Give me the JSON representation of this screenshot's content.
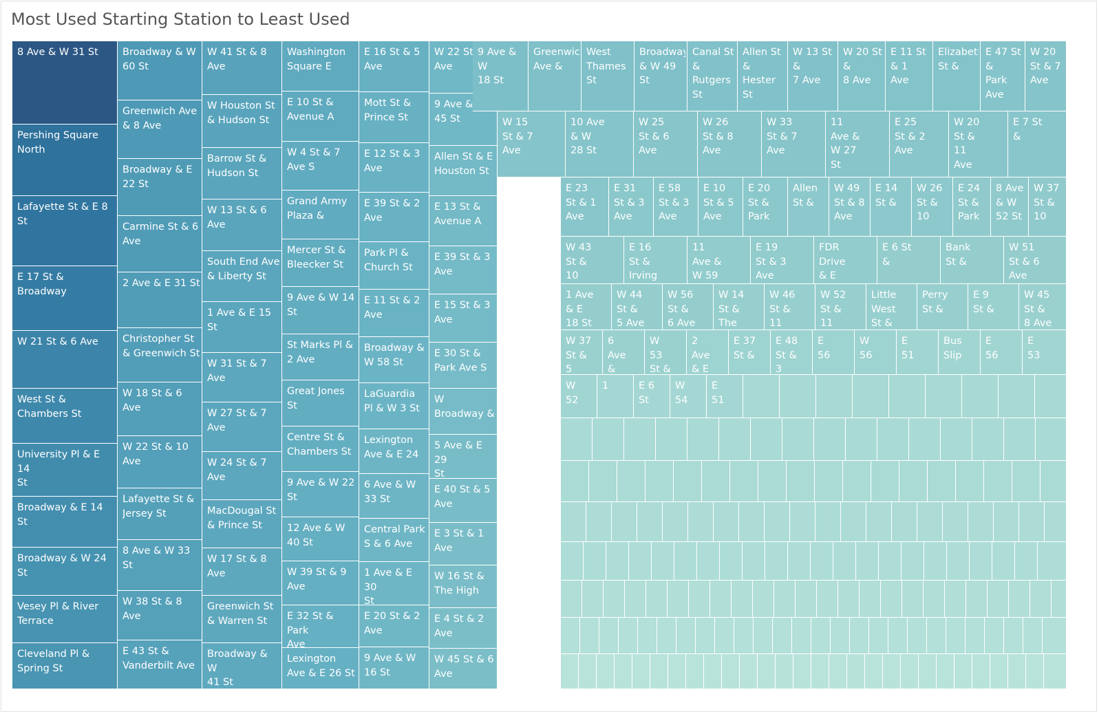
{
  "chart": {
    "title": "Most Used Starting Station to Least Used"
  },
  "colors": {
    "darkest": "#2c5784",
    "lightest": "#b8e3da"
  },
  "chart_data": {
    "type": "treemap",
    "title": "Most Used Starting Station to Least Used",
    "measure": "trip count (relative rank, estimated; not printed)",
    "leaves": [
      {
        "name": "8 Ave & W 31 St",
        "label": "8 Ave & W 31 St",
        "value": 122
      },
      {
        "name": "Pershing Square North",
        "label": "Pershing Square\nNorth",
        "value": 105
      },
      {
        "name": "Lafayette St & E 8 St",
        "label": "Lafayette St & E 8\nSt",
        "value": 103
      },
      {
        "name": "E 17 St & Broadway",
        "label": "E 17 St & Broadway",
        "value": 95
      },
      {
        "name": "W 21 St & 6 Ave",
        "label": "W 21 St & 6 Ave",
        "value": 85
      },
      {
        "name": "West St & Chambers St",
        "label": "West St &\nChambers St",
        "value": 81
      },
      {
        "name": "University Pl & E 14 St",
        "label": "University Pl & E 14\nSt",
        "value": 77
      },
      {
        "name": "Broadway & E 14 St",
        "label": "Broadway & E 14 St",
        "value": 74
      },
      {
        "name": "Broadway & W 24 St",
        "label": "Broadway & W 24\nSt",
        "value": 70
      },
      {
        "name": "Vesey Pl & River Terrace",
        "label": "Vesey Pl & River\nTerrace",
        "value": 69
      },
      {
        "name": "Cleveland Pl & Spring St",
        "label": "Cleveland Pl &\nSpring St",
        "value": 67
      },
      {
        "name": "Broadway & W 60 St",
        "label": "Broadway & W\n60 St",
        "value": 61
      },
      {
        "name": "Greenwich Ave & 8 Ave",
        "label": "Greenwich Ave\n& 8 Ave",
        "value": 60
      },
      {
        "name": "Broadway & E 22 St",
        "label": "Broadway & E\n22 St",
        "value": 59
      },
      {
        "name": "Carmine St & 6 Ave",
        "label": "Carmine St & 6\nAve",
        "value": 58
      },
      {
        "name": "2 Ave & E 31 St",
        "label": "2 Ave & E 31 St",
        "value": 57
      },
      {
        "name": "Christopher St & Greenwich St",
        "label": "Christopher St\n& Greenwich St",
        "value": 56
      },
      {
        "name": "W 18 St & 6 Ave",
        "label": "W 18 St & 6\nAve",
        "value": 55
      },
      {
        "name": "W 22 St & 10 Ave",
        "label": "W 22 St & 10\nAve",
        "value": 54
      },
      {
        "name": "Lafayette St & Jersey St",
        "label": "Lafayette St &\nJersey St",
        "value": 53
      },
      {
        "name": "8 Ave & W 33 St",
        "label": "8 Ave & W 33\nSt",
        "value": 52
      },
      {
        "name": "W 38 St & 8 Ave",
        "label": "W 38 St & 8\nAve",
        "value": 51
      },
      {
        "name": "E 43 St & Vanderbilt Ave",
        "label": "E 43 St &\nVanderbilt Ave",
        "value": 50
      },
      {
        "name": "W 41 St & 8 Ave",
        "label": "W 41 St & 8\nAve",
        "value": 49
      },
      {
        "name": "W Houston St & Hudson St",
        "label": "W Houston St\n& Hudson St",
        "value": 48
      },
      {
        "name": "Barrow St & Hudson St",
        "label": "Barrow St &\nHudson St",
        "value": 47
      },
      {
        "name": "W 13 St & 6 Ave",
        "label": "W 13 St & 6\nAve",
        "value": 47
      },
      {
        "name": "South End Ave & Liberty St",
        "label": "South End Ave\n& Liberty St",
        "value": 46
      },
      {
        "name": "1 Ave & E 15 St",
        "label": "1 Ave & E 15\nSt",
        "value": 46
      },
      {
        "name": "W 31 St & 7 Ave",
        "label": "W 31 St & 7\nAve",
        "value": 45
      },
      {
        "name": "W 27 St & 7 Ave",
        "label": "W 27 St & 7\nAve",
        "value": 45
      },
      {
        "name": "W 24 St & 7 Ave",
        "label": "W 24 St & 7\nAve",
        "value": 44
      },
      {
        "name": "MacDougal St & Prince St",
        "label": "MacDougal St\n& Prince St",
        "value": 44
      },
      {
        "name": "W 17 St & 8 Ave",
        "label": "W 17 St & 8\nAve",
        "value": 43
      },
      {
        "name": "Greenwich St & Warren St",
        "label": "Greenwich St\n& Warren St",
        "value": 43
      },
      {
        "name": "Broadway & W 41 St",
        "label": "Broadway & W\n41 St",
        "value": 42
      },
      {
        "name": "Washington Square E",
        "label": "Washington\nSquare E",
        "value": 41
      },
      {
        "name": "E 10 St & Avenue A",
        "label": "E 10 St &\nAvenue A",
        "value": 41
      },
      {
        "name": "W 4 St & 7 Ave S",
        "label": "W 4 St & 7\nAve S",
        "value": 40
      },
      {
        "name": "Grand Army Plaza &",
        "label": "Grand Army\nPlaza &",
        "value": 40
      },
      {
        "name": "Mercer St & Bleecker St",
        "label": "Mercer St &\nBleecker St",
        "value": 39
      },
      {
        "name": "9 Ave & W 14 St",
        "label": "9 Ave & W 14\nSt",
        "value": 39
      },
      {
        "name": "St Marks Pl & 2 Ave",
        "label": "St Marks Pl &\n2 Ave",
        "value": 38
      },
      {
        "name": "Great Jones St",
        "label": "Great Jones\nSt",
        "value": 38
      },
      {
        "name": "Centre St & Chambers St",
        "label": "Centre St &\nChambers St",
        "value": 37
      },
      {
        "name": "9 Ave & W 22 St",
        "label": "9 Ave & W 22\nSt",
        "value": 37
      },
      {
        "name": "12 Ave & W 40 St",
        "label": "12 Ave & W\n40 St",
        "value": 36
      },
      {
        "name": "W 39 St & 9 Ave",
        "label": "W 39 St & 9\nAve",
        "value": 36
      },
      {
        "name": "E 32 St & Park Ave",
        "label": "E 32 St & Park\nAve",
        "value": 35
      },
      {
        "name": "Lexington Ave & E 26 St",
        "label": "Lexington\nAve & E 26 St",
        "value": 35
      },
      {
        "name": "E 16 St & 5 Ave",
        "label": "E 16 St & 5\nAve",
        "value": 34
      },
      {
        "name": "Mott St & Prince St",
        "label": "Mott St &\nPrince St",
        "value": 34
      },
      {
        "name": "E 12 St & 3 Ave",
        "label": "E 12 St & 3\nAve",
        "value": 33
      },
      {
        "name": "E 39 St & 2 Ave",
        "label": "E 39 St & 2\nAve",
        "value": 33
      },
      {
        "name": "Park Pl & Church St",
        "label": "Park Pl &\nChurch St",
        "value": 32
      },
      {
        "name": "E 11 St & 2 Ave",
        "label": "E 11 St & 2\nAve",
        "value": 32
      },
      {
        "name": "Broadway & W 58 St",
        "label": "Broadway &\nW 58 St",
        "value": 31
      },
      {
        "name": "LaGuardia Pl & W 3 St",
        "label": "LaGuardia\nPl & W 3 St",
        "value": 31
      },
      {
        "name": "Lexington Ave & E 24",
        "label": "Lexington\nAve & E 24",
        "value": 30
      },
      {
        "name": "6 Ave & W 33 St",
        "label": "6 Ave & W\n33 St",
        "value": 30
      },
      {
        "name": "Central Park S & 6 Ave",
        "label": "Central Park\nS & 6 Ave",
        "value": 29
      },
      {
        "name": "1 Ave & E 30 St",
        "label": "1 Ave & E 30\nSt",
        "value": 29
      },
      {
        "name": "E 20 St & 2 Ave",
        "label": "E 20 St & 2\nAve",
        "value": 28
      },
      {
        "name": "9 Ave & W 16 St",
        "label": "9 Ave & W\n16 St",
        "value": 28
      },
      {
        "name": "W 22 St & 8 Ave",
        "label": "W 22 St & 8\nAve",
        "value": 27
      },
      {
        "name": "9 Ave & W 45 St",
        "label": "9 Ave & W\n45 St",
        "value": 27
      },
      {
        "name": "Allen St & E Houston St",
        "label": "Allen St & E\nHouston St",
        "value": 26
      },
      {
        "name": "E 13 St & Avenue A",
        "label": "E 13 St &\nAvenue A",
        "value": 26
      },
      {
        "name": "E 39 St & 3 Ave",
        "label": "E 39 St & 3\nAve",
        "value": 25
      },
      {
        "name": "E 15 St & 3 Ave",
        "label": "E 15 St & 3\nAve",
        "value": 25
      },
      {
        "name": "E 30 St & Park Ave S",
        "label": "E 30 St &\nPark Ave S",
        "value": 24
      },
      {
        "name": "W Broadway &",
        "label": "W\nBroadway &",
        "value": 24
      },
      {
        "name": "5 Ave & E 29 St",
        "label": "5 Ave & E 29\nSt",
        "value": 23
      },
      {
        "name": "E 40 St & 5 Ave",
        "label": "E 40 St & 5\nAve",
        "value": 23
      },
      {
        "name": "E 3 St & 1 Ave",
        "label": "E 3 St & 1\nAve",
        "value": 22
      },
      {
        "name": "W 16 St & The High",
        "label": "W 16 St &\nThe High",
        "value": 22
      },
      {
        "name": "E 4 St & 2 Ave",
        "label": "E 4 St & 2\nAve",
        "value": 21
      },
      {
        "name": "W 45 St & 6 Ave",
        "label": "W 45 St & 6\nAve",
        "value": 21
      },
      {
        "name": "9 Ave & W 18 St",
        "label": "9 Ave & W\n18 St",
        "value": 20
      },
      {
        "name": "Greenwich Ave &",
        "label": "Greenwich\nAve &",
        "value": 19
      },
      {
        "name": "West Thames St",
        "label": "West\nThames St",
        "value": 19
      },
      {
        "name": "Broadway & W 49 St",
        "label": "Broadway\n& W 49 St",
        "value": 19
      },
      {
        "name": "Canal St & Rutgers St",
        "label": "Canal St &\nRutgers St",
        "value": 18
      },
      {
        "name": "Allen St & Hester St",
        "label": "Allen St &\nHester St",
        "value": 18
      },
      {
        "name": "W 13 St & 7 Ave",
        "label": "W 13 St &\n7 Ave",
        "value": 18
      },
      {
        "name": "W 20 St & 8 Ave",
        "label": "W 20 St &\n8 Ave",
        "value": 17
      },
      {
        "name": "E 11 St & 1 Ave",
        "label": "E 11 St & 1\nAve",
        "value": 17
      },
      {
        "name": "Elizabeth St &",
        "label": "Elizabeth\nSt &",
        "value": 17
      },
      {
        "name": "E 47 St & Park Ave",
        "label": "E 47 St &\nPark Ave",
        "value": 16
      },
      {
        "name": "W 20 St & 7 Ave",
        "label": "W 20\nSt & 7\nAve",
        "value": 16
      },
      {
        "name": "W 15 St & 7 Ave",
        "label": "W 15\nSt & 7\nAve",
        "value": 16
      },
      {
        "name": "10 Ave & W 28 St",
        "label": "10 Ave\n& W\n28 St",
        "value": 16
      },
      {
        "name": "W 25 St & 6 Ave",
        "label": "W 25\nSt & 6\nAve",
        "value": 15
      },
      {
        "name": "W 26 St & 8 Ave",
        "label": "W 26\nSt & 8\nAve",
        "value": 15
      },
      {
        "name": "W 33 St & 7 Ave",
        "label": "W 33\nSt & 7\nAve",
        "value": 15
      },
      {
        "name": "11 Ave & W 27 St",
        "label": "11\nAve &\nW 27\nSt",
        "value": 15
      },
      {
        "name": "E 25 St & 2 Ave",
        "label": "E 25\nSt & 2\nAve",
        "value": 14
      },
      {
        "name": "W 20 St & 11 Ave",
        "label": "W 20\nSt &\n11\nAve",
        "value": 14
      },
      {
        "name": "E 7 St &",
        "label": "E 7 St\n&",
        "value": 14
      },
      {
        "name": "E 23 St & 1 Ave",
        "label": "E 23\nSt & 1\nAve",
        "value": 14
      },
      {
        "name": "E 31 St & 3 Ave",
        "label": "E 31\nSt & 3\nAve",
        "value": 13
      },
      {
        "name": "E 58 St & 3 Ave",
        "label": "E 58\nSt & 3\nAve",
        "value": 13
      },
      {
        "name": "E 10 St & 5 Ave",
        "label": "E 10\nSt & 5\nAve",
        "value": 13
      },
      {
        "name": "E 20 St & Park",
        "label": "E 20\nSt &\nPark",
        "value": 13
      },
      {
        "name": "Allen St &",
        "label": "Allen\nSt &",
        "value": 12
      },
      {
        "name": "W 49 St & 8 Ave",
        "label": "W 49\nSt & 8\nAve",
        "value": 12
      },
      {
        "name": "E 14 St &",
        "label": "E 14\nSt &",
        "value": 12
      },
      {
        "name": "W 26 St & 10",
        "label": "W 26\nSt &\n10",
        "value": 12
      },
      {
        "name": "E 24 St & Park",
        "label": "E 24\nSt &\nPark",
        "value": 11
      },
      {
        "name": "8 Ave & W 52 St",
        "label": "8 Ave\n& W\n52 St",
        "value": 11
      },
      {
        "name": "W 37 St & 10",
        "label": "W 37\nSt &\n10",
        "value": 11
      },
      {
        "name": "W 43 St & 10",
        "label": "W 43\nSt &\n10",
        "value": 11
      },
      {
        "name": "E 16 St & Irving",
        "label": "E 16\nSt &\nIrving",
        "value": 10
      },
      {
        "name": "11 Ave & W 59",
        "label": "11\nAve &\nW 59",
        "value": 10
      },
      {
        "name": "E 19 St & 3 Ave",
        "label": "E 19\nSt & 3\nAve",
        "value": 10
      },
      {
        "name": "FDR Drive & E",
        "label": "FDR\nDrive\n& E",
        "value": 10
      },
      {
        "name": "E 6 St &",
        "label": "E 6 St\n&",
        "value": 9
      },
      {
        "name": "Bank St &",
        "label": "Bank\nSt &",
        "value": 9
      },
      {
        "name": "W 51 St & 6 Ave",
        "label": "W 51\nSt & 6\nAve",
        "value": 9
      },
      {
        "name": "1 Ave & E 18 St",
        "label": "1 Ave\n& E\n18 St",
        "value": 9
      },
      {
        "name": "W 44 St & 5 Ave",
        "label": "W 44\nSt &\n5 Ave",
        "value": 9
      },
      {
        "name": "W 56 St & 6 Ave",
        "label": "W 56\nSt &\n6 Ave",
        "value": 9
      },
      {
        "name": "W 14 St & The",
        "label": "W 14\nSt &\nThe",
        "value": 8
      },
      {
        "name": "W 46 St & 11",
        "label": "W 46\nSt &\n11",
        "value": 8
      },
      {
        "name": "W 52 St & 11",
        "label": "W 52\nSt &\n11",
        "value": 8
      },
      {
        "name": "Little West St &",
        "label": "Little\nWest\nSt &",
        "value": 8
      },
      {
        "name": "Perry St &",
        "label": "Perry\nSt &",
        "value": 8
      },
      {
        "name": "E 9 St &",
        "label": "E 9\nSt &",
        "value": 7
      },
      {
        "name": "W 45 St & 8 Ave",
        "label": "W 45\nSt &\n8 Ave",
        "value": 7
      },
      {
        "name": "W 37 St & 5",
        "label": "W 37\nSt &\n5",
        "value": 7
      },
      {
        "name": "6 Ave &",
        "label": "6\nAve\n&",
        "value": 7
      },
      {
        "name": "W 53 St &",
        "label": "W\n53\nSt &",
        "value": 7
      },
      {
        "name": "2 Ave & E",
        "label": "2\nAve\n& E",
        "value": 6
      },
      {
        "name": "E 37 St &",
        "label": "E 37\nSt &",
        "value": 6
      },
      {
        "name": "E 48 St & 3",
        "label": "E 48\nSt &\n3",
        "value": 6
      },
      {
        "name": "E 56",
        "label": "E\n56",
        "value": 6
      },
      {
        "name": "W 56",
        "label": "W\n56",
        "value": 6
      },
      {
        "name": "E 51",
        "label": "E\n51",
        "value": 5
      },
      {
        "name": "Bus Slip",
        "label": "Bus\nSlip",
        "value": 5
      },
      {
        "name": "E 56 (2)",
        "label": "E\n56",
        "value": 5
      },
      {
        "name": "E 53",
        "label": "E\n53",
        "value": 5
      },
      {
        "name": "W 52",
        "label": "W\n52",
        "value": 5
      },
      {
        "name": "1",
        "label": "1",
        "value": 4
      },
      {
        "name": "E 6 St",
        "label": "E 6\nSt",
        "value": 4
      },
      {
        "name": "W 54",
        "label": "W\n54",
        "value": 4
      },
      {
        "name": "E 51 (2)",
        "label": "E\n51",
        "value": 4
      }
    ]
  }
}
